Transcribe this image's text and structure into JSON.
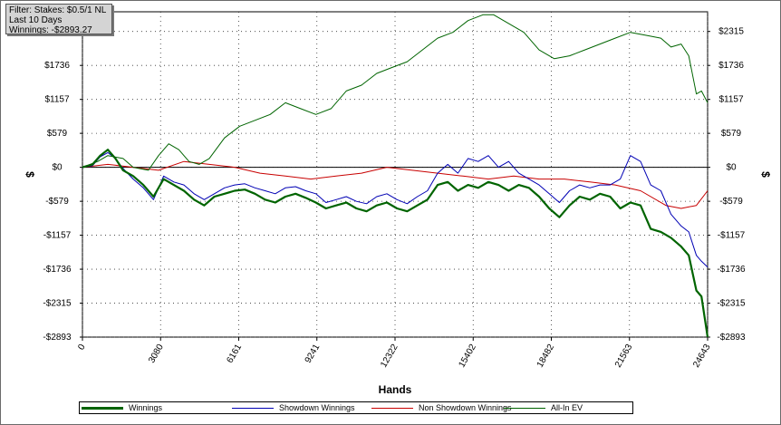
{
  "filter_box": {
    "line1": "Filter: Stakes: $0.5/1 NL",
    "line2": "Last  10 Days",
    "line3": "Winnings: -$2893.27"
  },
  "chart_data": {
    "type": "line",
    "xlabel": "Hands",
    "ylabel": "$",
    "xlim": [
      0,
      24643
    ],
    "ylim": [
      -2893,
      2650
    ],
    "x_ticks": [
      0,
      3080,
      6161,
      9241,
      12322,
      15402,
      18482,
      21563,
      24643
    ],
    "x_tick_labels": [
      "0",
      "3080",
      "6161",
      "9241",
      "12322",
      "15402",
      "18482",
      "21563",
      "24643"
    ],
    "y_ticks": [
      -2893,
      -2315,
      -1736,
      -1157,
      -579,
      0,
      579,
      1157,
      1736,
      2315
    ],
    "y_tick_labels": [
      "-$2893",
      "-$2315",
      "-$1736",
      "-$1157",
      "-$579",
      "$0",
      "$579",
      "$1157",
      "$1736",
      "$2315"
    ],
    "grid": true,
    "legend_position": "bottom",
    "series": [
      {
        "name": "Winnings",
        "color": "#006400",
        "x": [
          0,
          400,
          700,
          1000,
          1300,
          1600,
          2000,
          2400,
          2800,
          3200,
          3600,
          4000,
          4400,
          4800,
          5200,
          5600,
          6000,
          6400,
          6800,
          7200,
          7600,
          8000,
          8400,
          8800,
          9200,
          9600,
          10000,
          10400,
          10800,
          11200,
          11600,
          12000,
          12400,
          12800,
          13200,
          13600,
          14000,
          14400,
          14800,
          15200,
          15600,
          16000,
          16400,
          16800,
          17200,
          17600,
          18000,
          18400,
          18800,
          19200,
          19600,
          20000,
          20400,
          20800,
          21200,
          21600,
          22000,
          22400,
          22800,
          23200,
          23600,
          23900,
          24200,
          24400,
          24643
        ],
        "y": [
          0,
          50,
          200,
          300,
          150,
          -50,
          -150,
          -300,
          -500,
          -200,
          -300,
          -400,
          -550,
          -650,
          -500,
          -450,
          -400,
          -380,
          -450,
          -550,
          -600,
          -500,
          -450,
          -520,
          -600,
          -700,
          -650,
          -600,
          -700,
          -750,
          -650,
          -600,
          -700,
          -750,
          -650,
          -550,
          -300,
          -250,
          -400,
          -300,
          -350,
          -250,
          -300,
          -400,
          -300,
          -350,
          -500,
          -700,
          -850,
          -650,
          -500,
          -550,
          -450,
          -500,
          -700,
          -600,
          -650,
          -1050,
          -1100,
          -1200,
          -1350,
          -1500,
          -2100,
          -2200,
          -2893
        ]
      },
      {
        "name": "Showdown Winnings",
        "color": "#0000b4",
        "x": [
          0,
          400,
          700,
          1000,
          1300,
          1600,
          2000,
          2400,
          2800,
          3200,
          3600,
          4000,
          4400,
          4800,
          5200,
          5600,
          6000,
          6400,
          6800,
          7200,
          7600,
          8000,
          8400,
          8800,
          9200,
          9600,
          10000,
          10400,
          10800,
          11200,
          11600,
          12000,
          12400,
          12800,
          13200,
          13600,
          14000,
          14400,
          14800,
          15200,
          15600,
          16000,
          16400,
          16800,
          17200,
          17600,
          18000,
          18400,
          18800,
          19200,
          19600,
          20000,
          20400,
          20800,
          21200,
          21600,
          22000,
          22400,
          22800,
          23200,
          23600,
          23900,
          24200,
          24400,
          24643
        ],
        "y": [
          0,
          30,
          180,
          250,
          150,
          -20,
          -200,
          -350,
          -550,
          -150,
          -250,
          -300,
          -450,
          -550,
          -450,
          -350,
          -300,
          -280,
          -350,
          -400,
          -450,
          -350,
          -330,
          -400,
          -450,
          -600,
          -550,
          -500,
          -580,
          -620,
          -500,
          -450,
          -550,
          -620,
          -500,
          -400,
          -100,
          50,
          -100,
          150,
          100,
          200,
          0,
          100,
          -100,
          -200,
          -300,
          -450,
          -600,
          -400,
          -300,
          -350,
          -300,
          -300,
          -200,
          200,
          100,
          -300,
          -400,
          -800,
          -1000,
          -1100,
          -1500,
          -1600,
          -1700
        ]
      },
      {
        "name": "Non Showdown Winnings",
        "color": "#c80000",
        "x": [
          0,
          1000,
          2000,
          3000,
          4000,
          5000,
          6000,
          7000,
          8000,
          9000,
          10000,
          11000,
          12000,
          13000,
          14000,
          15000,
          16000,
          17000,
          18000,
          19000,
          20000,
          21000,
          22000,
          23000,
          23600,
          24200,
          24643
        ],
        "y": [
          0,
          50,
          0,
          -50,
          100,
          50,
          0,
          -100,
          -150,
          -200,
          -150,
          -100,
          0,
          -50,
          -100,
          -150,
          -200,
          -150,
          -200,
          -200,
          -250,
          -300,
          -400,
          -650,
          -700,
          -650,
          -400
        ]
      },
      {
        "name": "All-In EV",
        "color": "#006400",
        "x": [
          0,
          600,
          1000,
          1600,
          2000,
          2600,
          3000,
          3400,
          3800,
          4200,
          4600,
          5000,
          5600,
          6200,
          6800,
          7400,
          8000,
          8600,
          9200,
          9800,
          10400,
          11000,
          11600,
          12200,
          12800,
          13400,
          14000,
          14600,
          15200,
          15800,
          16200,
          16600,
          17000,
          17400,
          18000,
          18600,
          19200,
          19800,
          20400,
          21000,
          21600,
          22200,
          22800,
          23200,
          23600,
          23900,
          24200,
          24400,
          24643
        ],
        "y": [
          0,
          100,
          200,
          150,
          0,
          -50,
          200,
          400,
          300,
          100,
          50,
          150,
          500,
          700,
          800,
          900,
          1100,
          1000,
          900,
          1000,
          1300,
          1400,
          1600,
          1700,
          1800,
          2000,
          2200,
          2300,
          2500,
          2600,
          2600,
          2500,
          2400,
          2300,
          2000,
          1850,
          1900,
          2000,
          2100,
          2200,
          2300,
          2250,
          2200,
          2050,
          2100,
          1900,
          1250,
          1300,
          1100
        ]
      }
    ]
  }
}
